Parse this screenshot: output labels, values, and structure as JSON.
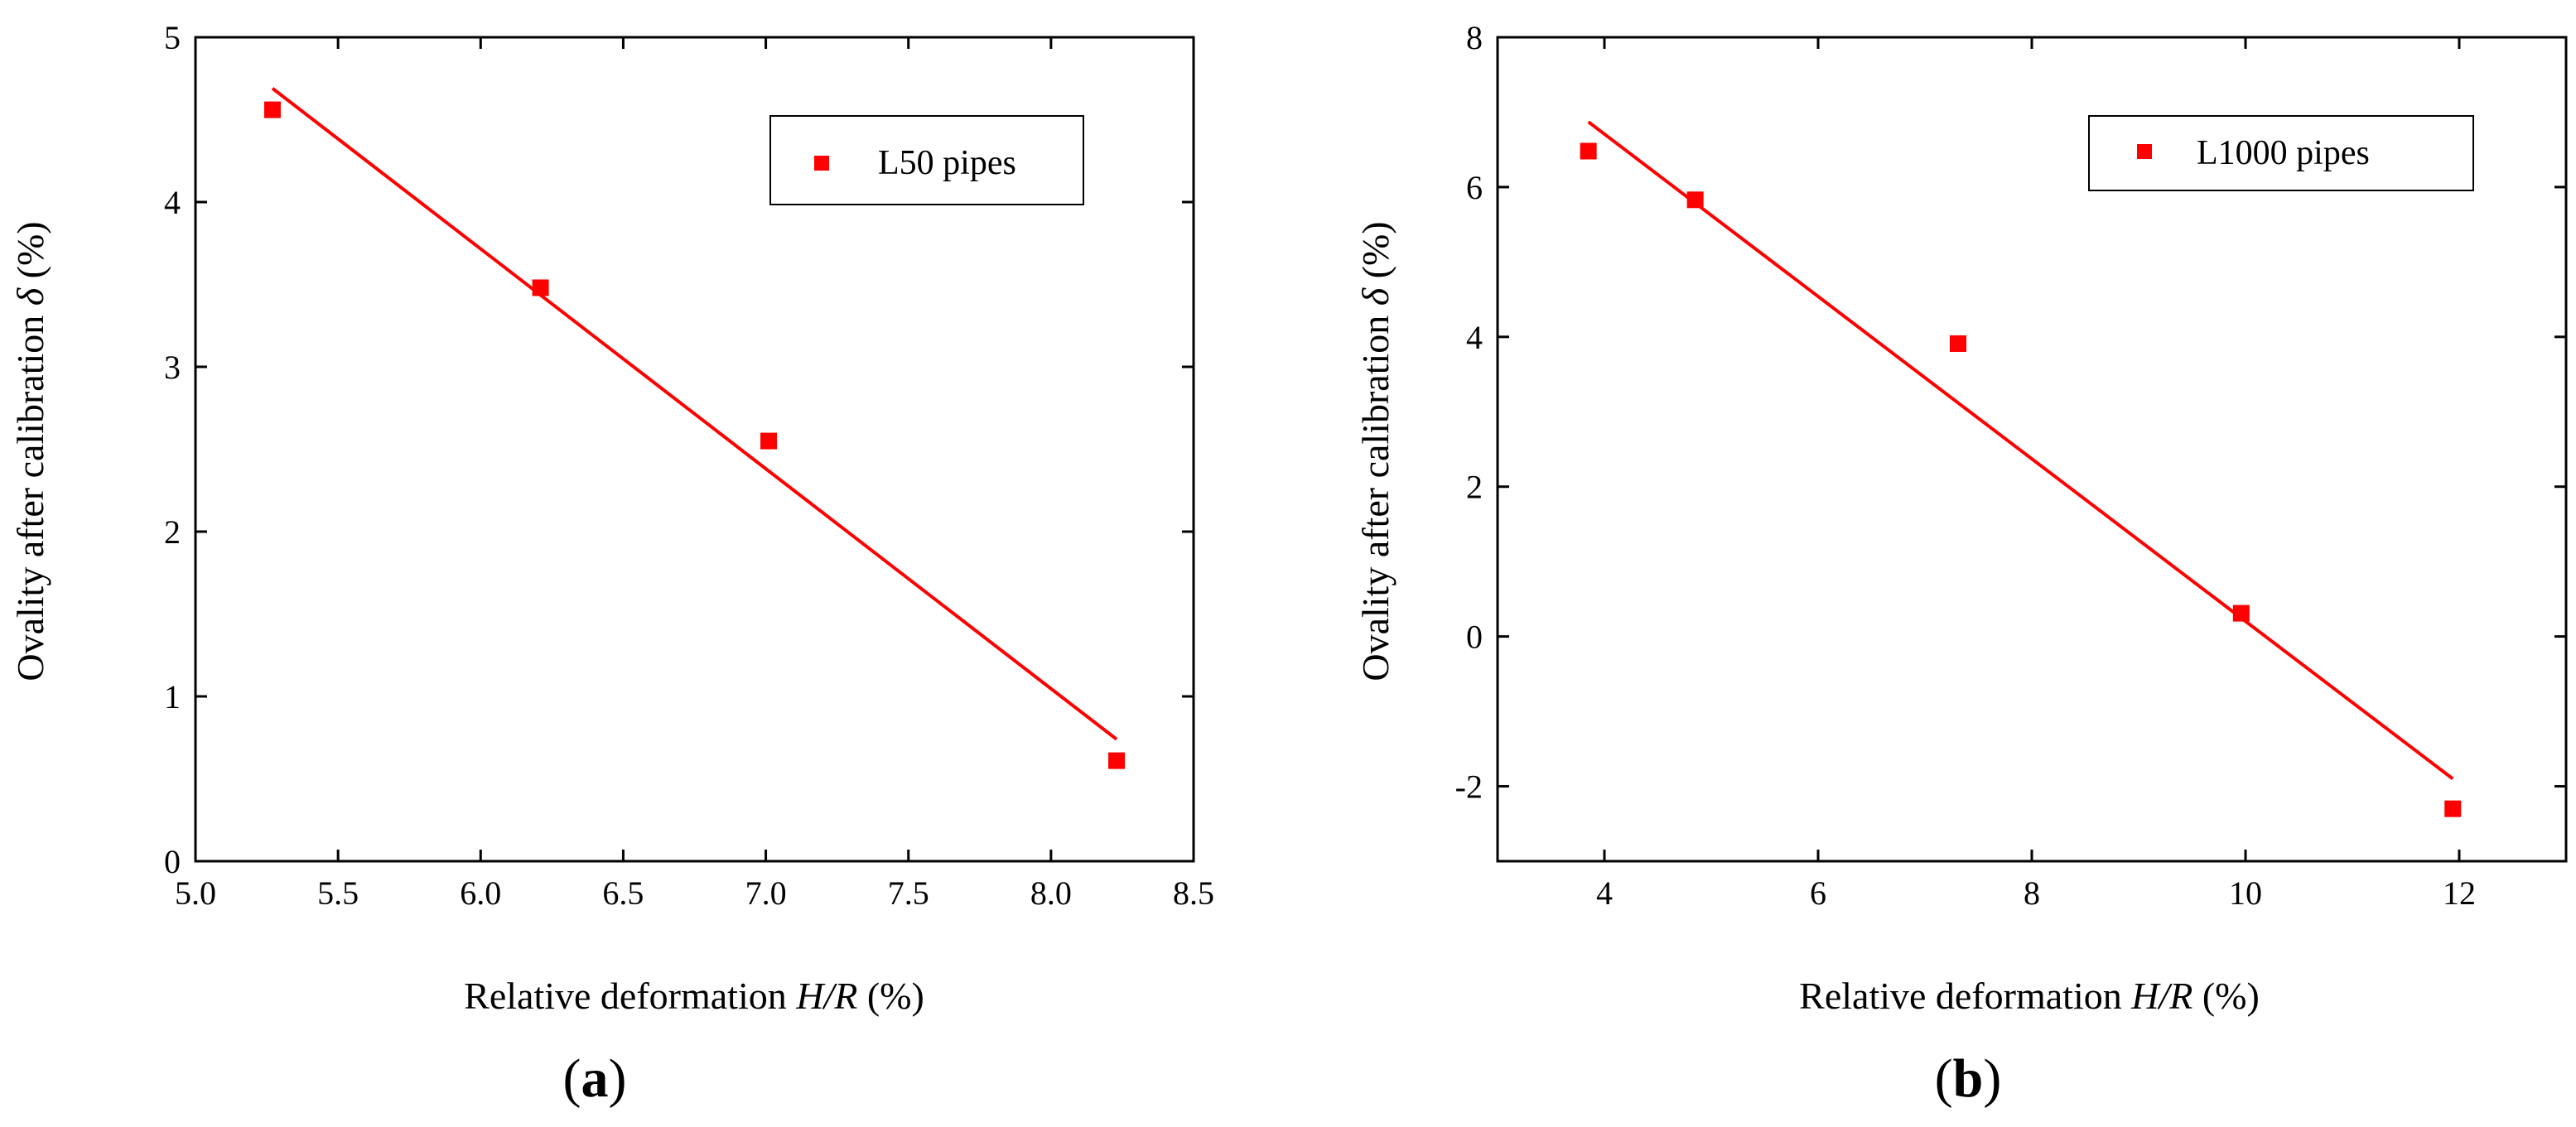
{
  "figure": {
    "panels": [
      {
        "label_open": "(",
        "label_letter": "a",
        "label_close": ")"
      },
      {
        "label_open": "(",
        "label_letter": "b",
        "label_close": ")"
      }
    ]
  },
  "chart_data": [
    {
      "type": "scatter",
      "panel": "a",
      "xlabel_prefix": "Relative deformation ",
      "xlabel_italic": "H/R",
      "xlabel_suffix": " (%)",
      "ylabel_prefix": "Ovality after calibration ",
      "ylabel_italic": "δ",
      "ylabel_suffix": " (%)",
      "xlim": [
        5.0,
        8.5
      ],
      "ylim": [
        0,
        5
      ],
      "xticks": [
        5.0,
        5.5,
        6.0,
        6.5,
        7.0,
        7.5,
        8.0,
        8.5
      ],
      "xtick_labels": [
        "5.0",
        "5.5",
        "6.0",
        "6.5",
        "7.0",
        "7.5",
        "8.0",
        "8.5"
      ],
      "yticks": [
        0,
        1,
        2,
        3,
        4,
        5
      ],
      "ytick_labels": [
        "0",
        "1",
        "2",
        "3",
        "4",
        "5"
      ],
      "grid": false,
      "legend_position": "top-right",
      "series": [
        {
          "name": "L50 pipes",
          "color": "#ff0000",
          "marker": "square",
          "x": [
            5.27,
            6.21,
            7.01,
            8.23
          ],
          "y": [
            4.56,
            3.48,
            2.55,
            0.61
          ]
        }
      ],
      "fit_line": {
        "color": "#ff0000",
        "x": [
          5.27,
          8.23
        ],
        "y": [
          4.69,
          0.74
        ]
      }
    },
    {
      "type": "scatter",
      "panel": "b",
      "xlabel_prefix": "Relative deformation ",
      "xlabel_italic": "H/R",
      "xlabel_suffix": " (%)",
      "ylabel_prefix": "Ovality after calibration ",
      "ylabel_italic": "δ",
      "ylabel_suffix": " (%)",
      "xlim": [
        3.0,
        13.0
      ],
      "ylim": [
        -3,
        8
      ],
      "xticks": [
        4,
        6,
        8,
        10,
        12
      ],
      "xtick_labels": [
        "4",
        "6",
        "8",
        "10",
        "12"
      ],
      "yticks": [
        -2,
        0,
        2,
        4,
        6,
        8
      ],
      "ytick_labels": [
        "-2",
        "0",
        "2",
        "4",
        "6",
        "8"
      ],
      "grid": false,
      "legend_position": "top-right",
      "series": [
        {
          "name": "L1000 pipes",
          "color": "#ff0000",
          "marker": "square",
          "x": [
            3.85,
            4.85,
            7.31,
            9.96,
            11.94
          ],
          "y": [
            6.48,
            5.83,
            3.91,
            0.31,
            -2.3
          ]
        }
      ],
      "fit_line": {
        "color": "#ff0000",
        "x": [
          3.85,
          11.94
        ],
        "y": [
          6.87,
          -1.9
        ]
      }
    }
  ]
}
